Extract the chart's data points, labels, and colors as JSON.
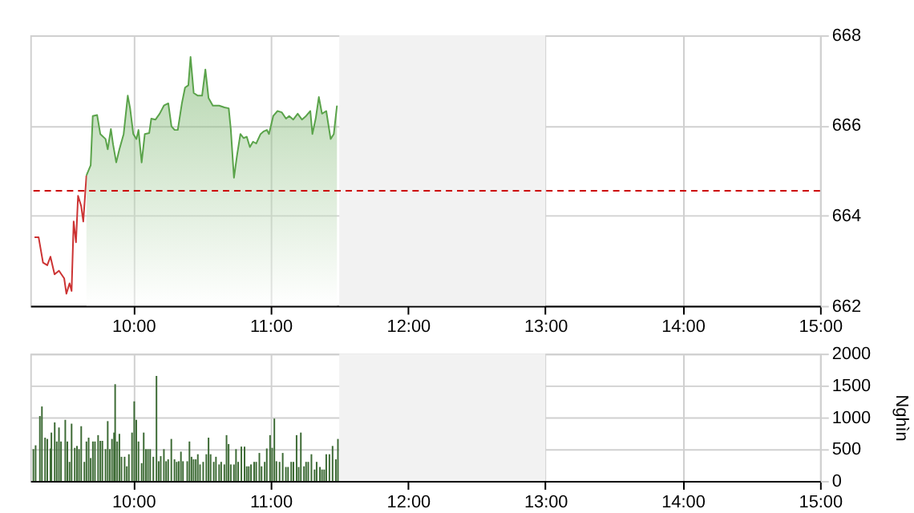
{
  "chart_data": [
    {
      "type": "line",
      "xlim": [
        9.25,
        15
      ],
      "ylim": [
        662,
        668
      ],
      "yticks": [
        662,
        664,
        666,
        668
      ],
      "grid": true,
      "xticks": [
        {
          "value": 10,
          "label": "10:00"
        },
        {
          "value": 11,
          "label": "11:00"
        },
        {
          "value": 12,
          "label": "12:00"
        },
        {
          "value": 13,
          "label": "13:00"
        },
        {
          "value": 14,
          "label": "14:00"
        },
        {
          "value": 15,
          "label": "15:00"
        }
      ],
      "bands": [
        {
          "axis": "x",
          "from": 11.5,
          "to": 13,
          "color": "#f2f2f2"
        }
      ],
      "ref_lines": [
        {
          "axis": "y",
          "value": 664.55,
          "color": "#cc0000",
          "line_style": "dashed"
        }
      ],
      "series": [
        {
          "type": "line",
          "color": "#cc3333",
          "x": [
            9.281,
            9.311,
            9.343,
            9.374,
            9.397,
            9.427,
            9.459,
            9.497,
            9.513,
            9.536,
            9.551,
            9.566,
            9.583,
            9.598,
            9.621,
            9.636,
            9.659
          ],
          "values": [
            663.52,
            663.52,
            662.96,
            662.9,
            663.09,
            662.7,
            662.78,
            662.61,
            662.27,
            662.5,
            662.33,
            663.87,
            663.41,
            664.44,
            664.21,
            663.87,
            664.89
          ]
        },
        {
          "type": "area",
          "color": "#5aa34a",
          "x": [
            9.659,
            9.69,
            9.705,
            9.737,
            9.76,
            9.798,
            9.814,
            9.837,
            9.853,
            9.876,
            9.899,
            9.93,
            9.96,
            9.977,
            10.0,
            10.023,
            10.038,
            10.061,
            10.084,
            10.116,
            10.131,
            10.162,
            10.192,
            10.223,
            10.255,
            10.278,
            10.301,
            10.324,
            10.354,
            10.377,
            10.401,
            10.417,
            10.44,
            10.47,
            10.501,
            10.525,
            10.548,
            10.579,
            10.625,
            10.664,
            10.695,
            10.71,
            10.733,
            10.756,
            10.78,
            10.803,
            10.826,
            10.849,
            10.872,
            10.895,
            10.927,
            10.95,
            10.973,
            10.988,
            11.019,
            11.05,
            11.081,
            11.112,
            11.135,
            11.165,
            11.197,
            11.228,
            11.258,
            11.289,
            11.304,
            11.328,
            11.351,
            11.374,
            11.405,
            11.437,
            11.46,
            11.483
          ],
          "values": [
            664.89,
            665.12,
            666.21,
            666.23,
            665.81,
            665.7,
            665.47,
            665.92,
            665.58,
            665.18,
            665.47,
            665.81,
            666.66,
            666.38,
            665.81,
            665.7,
            665.9,
            665.18,
            665.81,
            665.83,
            666.15,
            666.13,
            666.26,
            666.44,
            666.49,
            665.98,
            665.9,
            665.9,
            666.49,
            666.84,
            666.89,
            667.52,
            666.72,
            666.66,
            666.66,
            667.24,
            666.61,
            666.44,
            666.44,
            666.4,
            666.38,
            665.92,
            664.84,
            665.35,
            665.81,
            665.72,
            665.75,
            665.52,
            665.64,
            665.6,
            665.81,
            665.87,
            665.9,
            665.81,
            666.21,
            666.32,
            666.29,
            666.15,
            666.21,
            666.13,
            666.26,
            666.13,
            666.21,
            666.32,
            665.81,
            666.15,
            666.63,
            666.26,
            666.32,
            665.7,
            665.81,
            666.44
          ]
        }
      ]
    },
    {
      "type": "bar",
      "xlim": [
        9.25,
        15
      ],
      "ylim": [
        0,
        2000
      ],
      "yticks": [
        0,
        500,
        1000,
        1500,
        2000
      ],
      "grid": true,
      "ylabel": "Nghìn",
      "xticks": [
        {
          "value": 10,
          "label": "10:00"
        },
        {
          "value": 11,
          "label": "11:00"
        },
        {
          "value": 12,
          "label": "12:00"
        },
        {
          "value": 13,
          "label": "13:00"
        },
        {
          "value": 14,
          "label": "14:00"
        },
        {
          "value": 15,
          "label": "15:00"
        }
      ],
      "bands": [
        {
          "axis": "x",
          "from": 11.5,
          "to": 13,
          "color": "#f2f2f2"
        }
      ],
      "series": [
        {
          "color": "#3d6b35",
          "x": [
            9.273,
            9.289,
            9.32,
            9.335,
            9.358,
            9.374,
            9.397,
            9.404,
            9.428,
            9.443,
            9.459,
            9.474,
            9.505,
            9.52,
            9.536,
            9.551,
            9.574,
            9.59,
            9.605,
            9.621,
            9.644,
            9.659,
            9.675,
            9.69,
            9.706,
            9.721,
            9.744,
            9.76,
            9.775,
            9.798,
            9.814,
            9.829,
            9.845,
            9.86,
            9.868,
            9.883,
            9.899,
            9.914,
            9.937,
            9.953,
            9.968,
            9.991,
            10.007,
            10.022,
            10.038,
            10.061,
            10.076,
            10.092,
            10.107,
            10.123,
            10.146,
            10.169,
            10.185,
            10.2,
            10.223,
            10.239,
            10.254,
            10.277,
            10.3,
            10.316,
            10.331,
            10.347,
            10.362,
            10.393,
            10.409,
            10.424,
            10.439,
            10.455,
            10.47,
            10.486,
            10.509,
            10.532,
            10.548,
            10.563,
            10.586,
            10.602,
            10.625,
            10.64,
            10.663,
            10.679,
            10.694,
            10.71,
            10.733,
            10.748,
            10.764,
            10.787,
            10.81,
            10.826,
            10.841,
            10.857,
            10.88,
            10.895,
            10.918,
            10.934,
            10.957,
            10.972,
            10.996,
            11.011,
            11.027,
            11.042,
            11.065,
            11.088,
            11.111,
            11.127,
            11.15,
            11.166,
            11.189,
            11.204,
            11.22,
            11.243,
            11.258,
            11.274,
            11.297,
            11.32,
            11.335,
            11.359,
            11.374,
            11.39,
            11.405,
            11.428,
            11.451,
            11.475,
            11.49
          ],
          "values": [
            500,
            560,
            1020,
            1170,
            680,
            660,
            510,
            760,
            920,
            620,
            840,
            620,
            960,
            620,
            300,
            900,
            520,
            550,
            500,
            860,
            300,
            620,
            680,
            360,
            620,
            620,
            720,
            630,
            630,
            500,
            940,
            500,
            660,
            760,
            1520,
            620,
            740,
            380,
            380,
            230,
            420,
            760,
            1250,
            960,
            620,
            280,
            760,
            500,
            500,
            500,
            380,
            1650,
            310,
            390,
            500,
            310,
            340,
            660,
            340,
            300,
            310,
            460,
            310,
            310,
            620,
            380,
            340,
            340,
            420,
            260,
            300,
            420,
            680,
            420,
            300,
            380,
            260,
            300,
            260,
            720,
            580,
            260,
            260,
            500,
            300,
            540,
            540,
            230,
            230,
            260,
            300,
            300,
            440,
            230,
            300,
            510,
            720,
            520,
            980,
            310,
            300,
            440,
            220,
            220,
            300,
            300,
            720,
            220,
            760,
            230,
            300,
            300,
            420,
            180,
            300,
            220,
            180,
            180,
            420,
            420,
            550,
            340,
            660
          ]
        }
      ]
    }
  ]
}
